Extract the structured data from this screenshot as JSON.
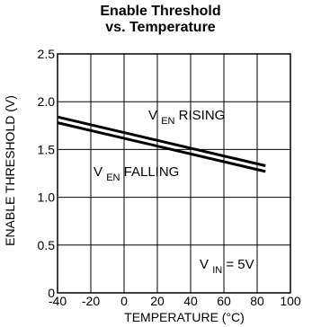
{
  "chart_data": {
    "type": "line",
    "title": "Enable Threshold",
    "subtitle": "vs. Temperature",
    "xlabel": "TEMPERATURE (°C)",
    "ylabel": "ENABLE THRESHOLD (V)",
    "xlim": [
      -40,
      100
    ],
    "ylim": [
      0,
      2.5
    ],
    "x_ticks": [
      "-40",
      "-20",
      "0",
      "20",
      "40",
      "60",
      "80",
      "100"
    ],
    "x_tick_values": [
      -40,
      -20,
      0,
      20,
      40,
      60,
      80,
      100
    ],
    "y_ticks": [
      "0",
      "0.5",
      "1.0",
      "1.5",
      "2.0",
      "2.5"
    ],
    "y_tick_values": [
      0,
      0.5,
      1.0,
      1.5,
      2.0,
      2.5
    ],
    "grid": true,
    "series": [
      {
        "label_main": "V",
        "label_sub": "EN",
        "label_rest": " RISING",
        "x": [
          -40,
          85
        ],
        "y": [
          1.84,
          1.33
        ]
      },
      {
        "label_main": "V",
        "label_sub": "EN",
        "label_rest": " FALLING",
        "x": [
          -40,
          85
        ],
        "y": [
          1.78,
          1.27
        ]
      }
    ],
    "annotation": {
      "main": "V",
      "sub": "IN",
      "rest": " = 5V"
    },
    "line_color": "#000000"
  }
}
